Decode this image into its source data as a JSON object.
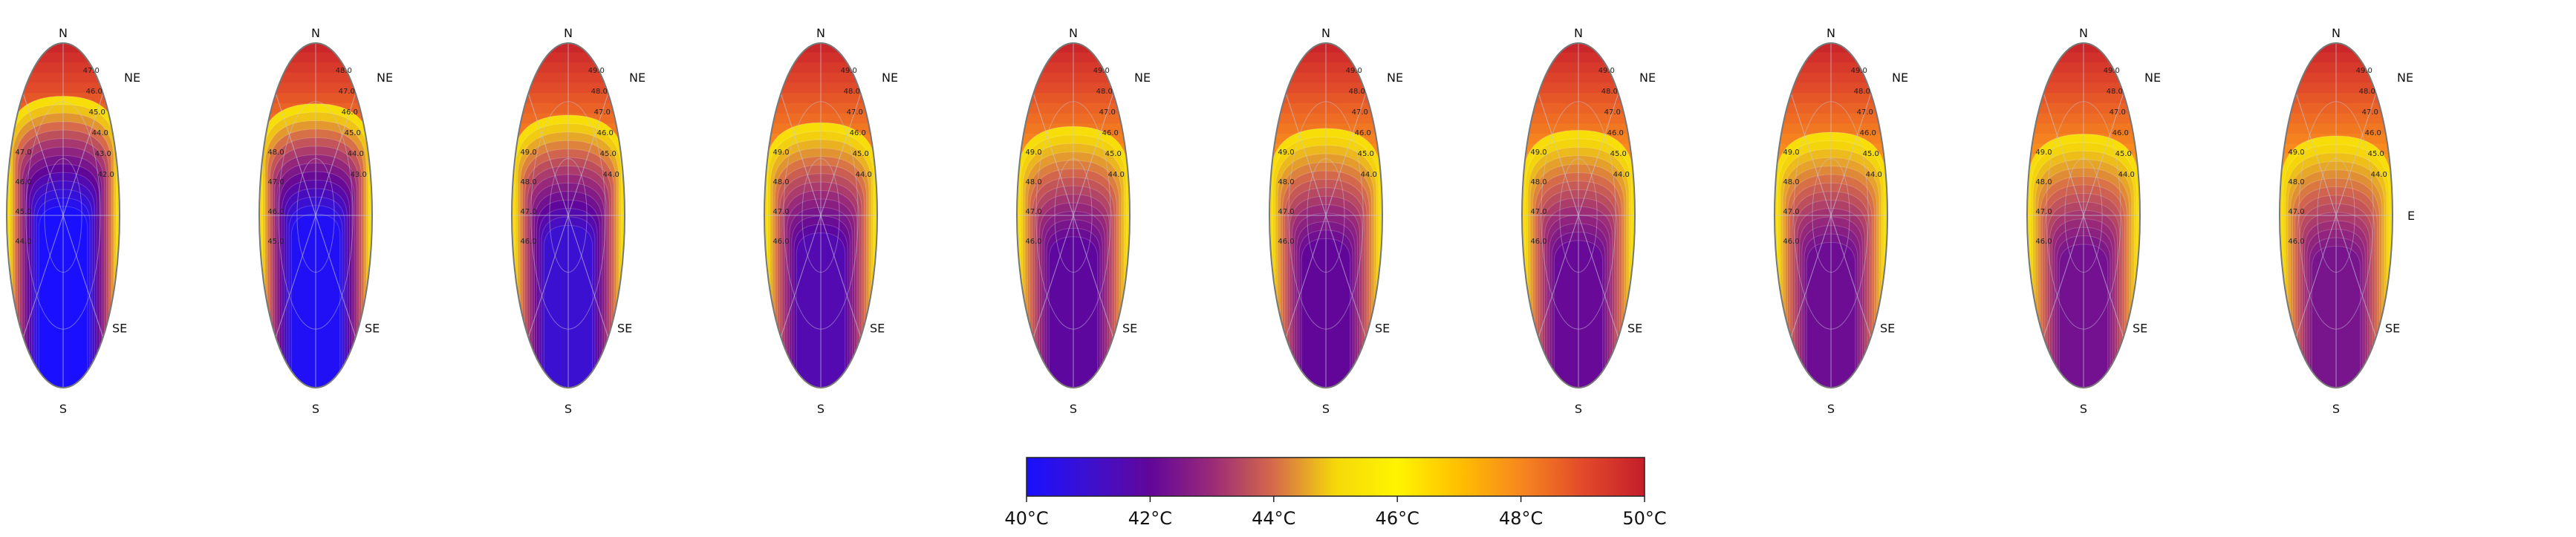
{
  "chart_data": {
    "type": "heatmap",
    "subtype": "polar contour panels (compass directions)",
    "panel_count": 10,
    "directions": {
      "n": "N",
      "ne": "NE",
      "e": "E",
      "se": "SE",
      "s": "S"
    },
    "east_label_on_last_panel_only": true,
    "colorbar": {
      "min": 40,
      "max": 50,
      "unit": "°C",
      "ticks": [
        40,
        42,
        44,
        46,
        48,
        50
      ],
      "tick_labels": [
        "40°C",
        "42°C",
        "44°C",
        "46°C",
        "48°C",
        "50°C"
      ],
      "colormap": [
        "#1a10ff",
        "#3c10d0",
        "#62069a",
        "#9a2a78",
        "#d66a4a",
        "#f5d80a",
        "#fff400",
        "#ffbf00",
        "#f7871e",
        "#e24a2a",
        "#c41e2a"
      ]
    },
    "panels": [
      {
        "index": 1,
        "cool_core_temp": 40.0,
        "cool_core_extent": 0.72,
        "contour_labels": [
          "47.0",
          "46.0",
          "45.0",
          "44.0",
          "43.0",
          "42.0"
        ]
      },
      {
        "index": 2,
        "cool_core_temp": 40.2,
        "cool_core_extent": 0.68,
        "contour_labels": [
          "48.0",
          "47.0",
          "46.0",
          "45.0",
          "44.0",
          "43.0"
        ]
      },
      {
        "index": 3,
        "cool_core_temp": 41.0,
        "cool_core_extent": 0.62,
        "contour_labels": [
          "49.0",
          "48.0",
          "47.0",
          "46.0",
          "45.0",
          "44.0"
        ]
      },
      {
        "index": 4,
        "cool_core_temp": 41.6,
        "cool_core_extent": 0.58,
        "contour_labels": [
          "49.0",
          "48.0",
          "47.0",
          "46.0",
          "45.0",
          "44.0"
        ]
      },
      {
        "index": 5,
        "cool_core_temp": 41.9,
        "cool_core_extent": 0.56,
        "contour_labels": [
          "49.0",
          "48.0",
          "47.0",
          "46.0",
          "45.0",
          "44.0"
        ]
      },
      {
        "index": 6,
        "cool_core_temp": 42.0,
        "cool_core_extent": 0.55,
        "contour_labels": [
          "49.0",
          "48.0",
          "47.0",
          "46.0",
          "45.0",
          "44.0"
        ]
      },
      {
        "index": 7,
        "cool_core_temp": 42.1,
        "cool_core_extent": 0.54,
        "contour_labels": [
          "49.0",
          "48.0",
          "47.0",
          "46.0",
          "45.0",
          "44.0"
        ]
      },
      {
        "index": 8,
        "cool_core_temp": 42.2,
        "cool_core_extent": 0.53,
        "contour_labels": [
          "49.0",
          "48.0",
          "47.0",
          "46.0",
          "45.0",
          "44.0"
        ]
      },
      {
        "index": 9,
        "cool_core_temp": 42.3,
        "cool_core_extent": 0.52,
        "contour_labels": [
          "49.0",
          "48.0",
          "47.0",
          "46.0",
          "45.0",
          "44.0"
        ]
      },
      {
        "index": 10,
        "cool_core_temp": 42.4,
        "cool_core_extent": 0.51,
        "contour_labels": [
          "49.0",
          "48.0",
          "47.0",
          "46.0",
          "45.0",
          "44.0"
        ]
      }
    ]
  }
}
